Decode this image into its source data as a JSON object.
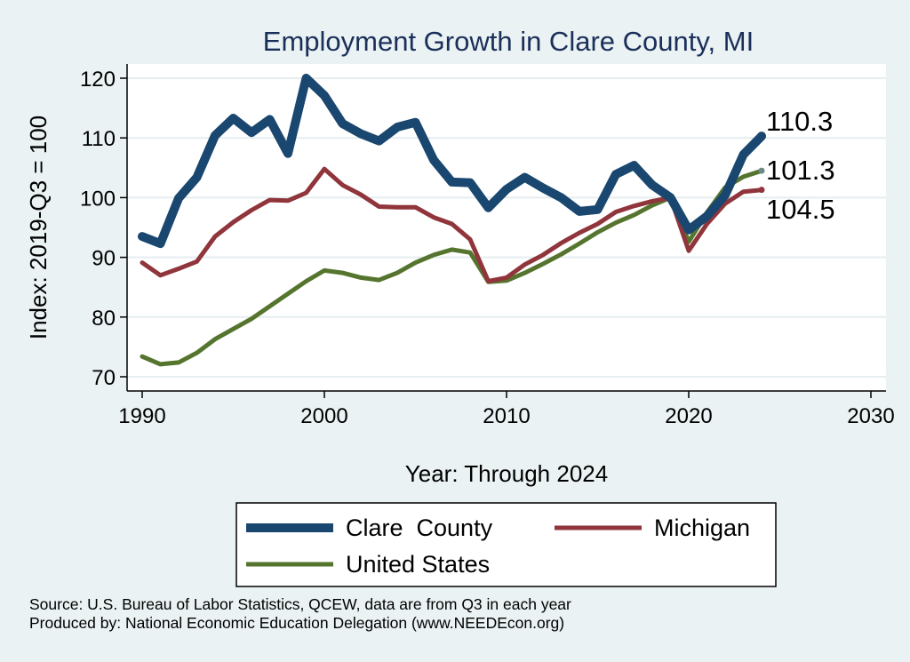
{
  "chart_data": {
    "type": "line",
    "title": "Employment Growth in Clare County, MI",
    "xlabel": "Year: Through 2024",
    "ylabel": "Index: 2019-Q3 = 100",
    "xlim": [
      1990,
      2030
    ],
    "ylim": [
      68,
      124
    ],
    "xticks": [
      1990,
      2000,
      2010,
      2020,
      2030
    ],
    "yticks": [
      70,
      80,
      90,
      100,
      110,
      120
    ],
    "grid": true,
    "legend_position": "bottom",
    "x": [
      1990,
      1991,
      1992,
      1993,
      1994,
      1995,
      1996,
      1997,
      1998,
      1999,
      2000,
      2001,
      2002,
      2003,
      2004,
      2005,
      2006,
      2007,
      2008,
      2009,
      2010,
      2011,
      2012,
      2013,
      2014,
      2015,
      2016,
      2017,
      2018,
      2019,
      2020,
      2021,
      2022,
      2023,
      2024
    ],
    "series": [
      {
        "name": "Clare  County",
        "color": "#1a476f",
        "values": [
          93.5,
          92.3,
          99.9,
          103.4,
          110.4,
          113.3,
          110.9,
          113.1,
          107.4,
          120.0,
          117.1,
          112.4,
          110.7,
          109.5,
          111.8,
          112.6,
          106.3,
          102.6,
          102.5,
          98.3,
          101.4,
          103.4,
          101.6,
          100.0,
          97.7,
          98.0,
          103.9,
          105.4,
          102.1,
          100.0,
          94.6,
          96.9,
          100.4,
          107.2,
          110.3
        ],
        "end_label": "110.3"
      },
      {
        "name": "Michigan",
        "color": "#90353b",
        "values": [
          89.1,
          87.0,
          88.1,
          89.3,
          93.5,
          95.9,
          97.9,
          99.6,
          99.5,
          100.8,
          104.8,
          102.1,
          100.5,
          98.5,
          98.4,
          98.4,
          96.7,
          95.6,
          93.0,
          86.0,
          86.6,
          88.8,
          90.4,
          92.4,
          94.1,
          95.6,
          97.6,
          98.6,
          99.4,
          100.0,
          91.1,
          95.6,
          99.0,
          101.0,
          101.3
        ],
        "end_label": "101.3"
      },
      {
        "name": "United States",
        "color": "#55752f",
        "values": [
          73.4,
          72.1,
          72.4,
          74.0,
          76.3,
          78.0,
          79.7,
          81.8,
          83.9,
          86.0,
          87.8,
          87.4,
          86.6,
          86.2,
          87.4,
          89.1,
          90.4,
          91.3,
          90.8,
          85.9,
          86.1,
          87.4,
          88.9,
          90.5,
          92.3,
          94.2,
          95.8,
          97.1,
          98.7,
          100.0,
          92.6,
          97.5,
          101.7,
          103.5,
          104.5
        ],
        "end_label": "104.5"
      }
    ]
  },
  "source": {
    "line1": "Source: U.S. Bureau of Labor Statistics, QCEW, data are from Q3 in each year",
    "line2": "Produced by: National Economic Education Delegation (www.NEEDEcon.org)"
  }
}
